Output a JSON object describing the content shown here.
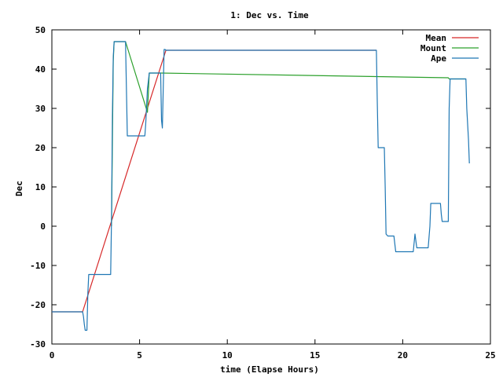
{
  "chart_data": {
    "type": "line",
    "title": "1: Dec vs. Time",
    "xlabel": "time (Elapse Hours)",
    "ylabel": "Dec",
    "xlim": [
      0,
      25
    ],
    "ylim": [
      -30,
      50
    ],
    "xticks": [
      "0",
      "5",
      "10",
      "15",
      "20",
      "25"
    ],
    "yticks": [
      "-30",
      "-20",
      "-10",
      "0",
      "10",
      "20",
      "30",
      "40",
      "50"
    ],
    "grid": false,
    "legend_position": "top-right",
    "series": [
      {
        "name": "Mean",
        "color": "#d62728",
        "x": [
          0,
          1.75,
          6.5,
          18.5
        ],
        "y": [
          -21.8,
          -21.8,
          44.8,
          44.8
        ]
      },
      {
        "name": "Mount",
        "color": "#2ca02c",
        "x": [
          3.4,
          3.5,
          3.55,
          4.2,
          5.45,
          5.5,
          5.55,
          6.15,
          6.2,
          22.6,
          22.65,
          23.6
        ],
        "y": [
          0,
          42,
          47,
          47,
          29,
          34,
          39,
          39,
          39,
          37.8,
          37.5,
          37.5
        ]
      },
      {
        "name": "Ape",
        "color": "#1f77b4",
        "x": [
          0,
          1.75,
          1.8,
          1.85,
          1.9,
          2.0,
          2.05,
          2.1,
          3.35,
          3.4,
          3.45,
          3.5,
          3.55,
          3.6,
          4.2,
          4.3,
          4.35,
          5.3,
          5.35,
          5.45,
          5.5,
          5.55,
          6.2,
          6.25,
          6.3,
          6.4,
          6.45,
          6.5,
          18.5,
          18.55,
          18.6,
          18.95,
          19.0,
          19.05,
          19.15,
          19.5,
          19.6,
          20.6,
          20.7,
          20.8,
          21.45,
          21.55,
          21.6,
          22.15,
          22.2,
          22.25,
          22.6,
          22.65,
          22.7,
          23.6,
          23.65,
          23.75,
          23.8
        ],
        "y": [
          -21.8,
          -21.8,
          -23,
          -25,
          -26.5,
          -26.5,
          -17,
          -12.3,
          -12.3,
          2,
          28,
          43,
          47,
          47,
          47,
          23,
          23,
          23,
          26,
          35,
          37,
          39,
          39,
          27,
          25,
          45,
          45,
          44.8,
          44.8,
          32,
          20,
          20,
          10,
          -2,
          -2.5,
          -2.5,
          -6.5,
          -6.5,
          -2,
          -5.5,
          -5.5,
          0,
          5.8,
          5.8,
          3,
          1.2,
          1.2,
          30,
          37.5,
          37.5,
          30,
          22,
          16
        ]
      }
    ]
  }
}
